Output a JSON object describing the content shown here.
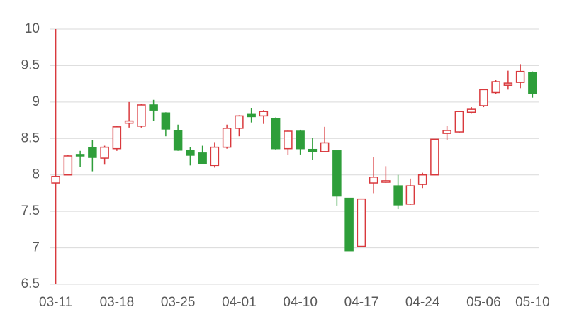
{
  "chart_data": {
    "type": "candlestick",
    "categories": [
      "03-11",
      null,
      null,
      null,
      null,
      "03-18",
      null,
      null,
      null,
      null,
      "03-25",
      null,
      null,
      null,
      null,
      "04-01",
      null,
      null,
      null,
      null,
      "04-10",
      null,
      null,
      null,
      null,
      "04-17",
      null,
      null,
      null,
      null,
      "04-24",
      null,
      null,
      null,
      null,
      "05-06",
      null,
      null,
      null,
      "05-10"
    ],
    "open": [
      7.89,
      8.0,
      8.28,
      8.37,
      8.23,
      8.36,
      8.71,
      8.67,
      8.96,
      8.85,
      8.61,
      8.34,
      8.3,
      8.13,
      8.38,
      8.64,
      8.83,
      8.81,
      8.77,
      8.36,
      8.6,
      8.35,
      8.32,
      8.33,
      7.68,
      7.02,
      7.89,
      7.9,
      7.85,
      7.6,
      7.87,
      8.0,
      8.57,
      8.59,
      8.86,
      8.95,
      9.13,
      9.23,
      9.27,
      9.4
    ],
    "high": [
      10,
      8.27,
      8.33,
      8.48,
      8.4,
      8.67,
      9.0,
      8.97,
      9.03,
      8.86,
      8.69,
      8.38,
      8.4,
      8.45,
      8.69,
      8.82,
      8.92,
      8.89,
      8.79,
      8.61,
      8.62,
      8.51,
      8.66,
      8.33,
      7.68,
      7.67,
      8.24,
      8.12,
      8.0,
      7.95,
      8.03,
      8.49,
      8.67,
      8.87,
      8.93,
      9.18,
      9.3,
      9.43,
      9.52,
      9.42
    ],
    "low": [
      6.5,
      8.0,
      8.11,
      8.05,
      8.15,
      8.33,
      8.65,
      8.65,
      8.74,
      8.53,
      8.33,
      8.13,
      8.16,
      8.1,
      8.36,
      8.53,
      8.72,
      8.7,
      8.34,
      8.27,
      8.28,
      8.21,
      8.31,
      7.58,
      6.96,
      7.02,
      7.75,
      7.89,
      7.53,
      7.59,
      7.82,
      8.0,
      8.48,
      8.58,
      8.84,
      8.93,
      9.11,
      9.17,
      9.19,
      9.06
    ],
    "close": [
      7.98,
      8.26,
      8.26,
      8.24,
      8.38,
      8.66,
      8.74,
      8.96,
      8.89,
      8.63,
      8.34,
      8.27,
      8.16,
      8.38,
      8.64,
      8.81,
      8.8,
      8.87,
      8.36,
      8.6,
      8.36,
      8.32,
      8.44,
      7.71,
      6.96,
      7.67,
      7.97,
      7.92,
      7.59,
      7.85,
      8.0,
      8.49,
      8.61,
      8.87,
      8.9,
      9.17,
      9.28,
      9.26,
      9.42,
      9.12
    ],
    "up_color": "#d9393d",
    "down_color": "#2e9e3a",
    "ylim": [
      6.5,
      10
    ],
    "yticks": [
      6.5,
      7,
      7.5,
      8,
      8.5,
      9,
      9.5,
      10
    ],
    "grid": true
  }
}
